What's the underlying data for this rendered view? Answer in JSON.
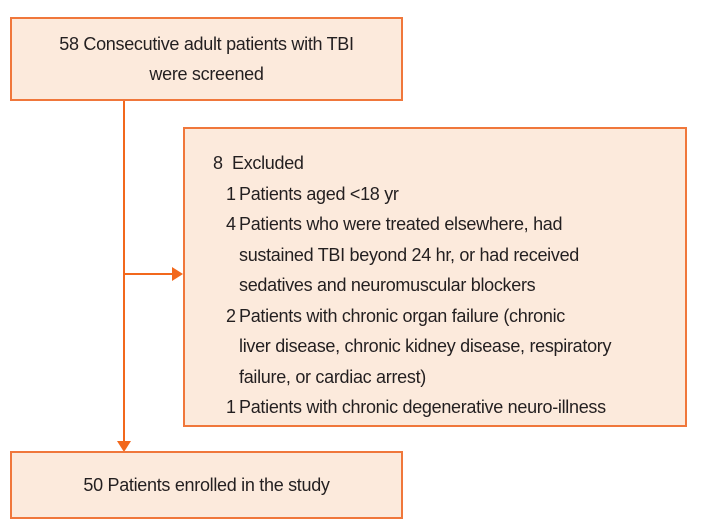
{
  "diagram": {
    "colors": {
      "box_fill": "#FCEADC",
      "box_border": "#F0773B",
      "arrow": "#F2681C",
      "text": "#231F20"
    },
    "top_box": {
      "lines": [
        "58 Consecutive adult patients with TBI",
        "were screened"
      ]
    },
    "excluded_box": {
      "count": "8",
      "label": "Excluded",
      "items": [
        {
          "count": "1",
          "lines": [
            "Patients aged <18 yr"
          ]
        },
        {
          "count": "4",
          "lines": [
            "Patients who were treated elsewhere, had",
            "sustained TBI beyond 24 hr, or had received",
            "sedatives and neuromuscular blockers"
          ]
        },
        {
          "count": "2",
          "lines": [
            "Patients with chronic organ failure (chronic",
            "liver disease, chronic kidney disease, respiratory",
            "failure, or cardiac arrest)"
          ]
        },
        {
          "count": "1",
          "lines": [
            "Patients with chronic degenerative neuro-illness"
          ]
        }
      ]
    },
    "bottom_box": {
      "text": "50 Patients enrolled in the study"
    }
  }
}
